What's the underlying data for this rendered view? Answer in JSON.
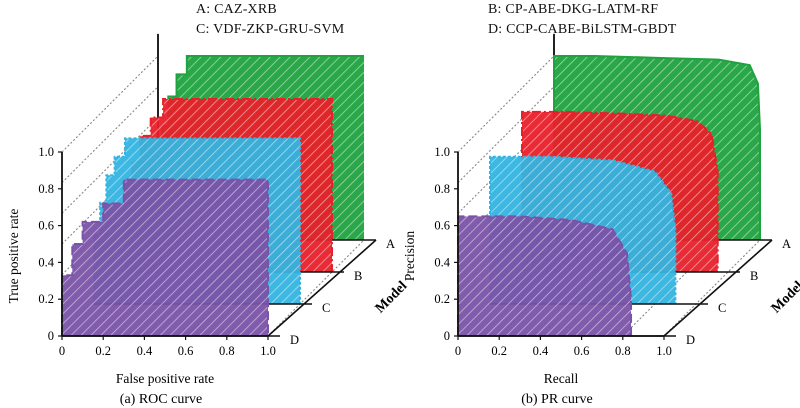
{
  "legend": [
    {
      "key": "A",
      "text": "A: CAZ-XRB",
      "color": "#1fa23f"
    },
    {
      "key": "B",
      "text": "B: CP-ABE-DKG-LATM-RF",
      "color": "#e8202a"
    },
    {
      "key": "C",
      "text": "C: VDF-ZKP-GRU-SVM",
      "color": "#33b4e0"
    },
    {
      "key": "D",
      "text": "D: CCP-CABE-BiLSTM-GBDT",
      "color": "#7a52a8"
    }
  ],
  "chart_data": [
    {
      "type": "area",
      "caption": "(a) ROC curve",
      "xlabel": "False positive rate",
      "ylabel": "True positive rate",
      "zlabel": "Model",
      "xlim": [
        0,
        1
      ],
      "ylim": [
        0,
        1
      ],
      "x_ticks": [
        "0",
        "0.2",
        "0.4",
        "0.6",
        "0.8",
        "1.0"
      ],
      "y_ticks": [
        "0",
        "0.2",
        "0.4",
        "0.6",
        "0.8",
        "1.0"
      ],
      "z_ticks": [
        "A",
        "B",
        "C",
        "D"
      ],
      "series": [
        {
          "name": "A",
          "x": [
            0,
            0,
            0.02,
            0.02,
            0.05,
            0.05,
            0.09,
            0.09,
            0.14,
            0.14,
            0.2,
            1.0
          ],
          "y": [
            0,
            0.45,
            0.45,
            0.62,
            0.62,
            0.78,
            0.78,
            0.9,
            0.9,
            1.0,
            1.0,
            1.0
          ]
        },
        {
          "name": "B",
          "x": [
            0,
            0,
            0.03,
            0.03,
            0.07,
            0.07,
            0.12,
            0.12,
            0.18,
            0.18,
            1.0,
            1.0
          ],
          "y": [
            0,
            0.42,
            0.42,
            0.6,
            0.6,
            0.74,
            0.74,
            0.84,
            0.84,
            0.94,
            0.94,
            0
          ]
        },
        {
          "name": "C",
          "x": [
            0,
            0,
            0.03,
            0.03,
            0.06,
            0.06,
            0.1,
            0.1,
            0.15,
            0.15,
            1.0,
            1.0
          ],
          "y": [
            0,
            0.38,
            0.38,
            0.55,
            0.55,
            0.7,
            0.7,
            0.8,
            0.8,
            0.9,
            0.9,
            0
          ]
        },
        {
          "name": "D",
          "x": [
            0,
            0,
            0.05,
            0.05,
            0.1,
            0.1,
            0.2,
            0.2,
            0.3,
            0.3,
            1.0,
            1.0
          ],
          "y": [
            0,
            0.33,
            0.33,
            0.5,
            0.5,
            0.62,
            0.62,
            0.72,
            0.72,
            0.85,
            0.85,
            0
          ]
        }
      ]
    },
    {
      "type": "area",
      "caption": "(b) PR curve",
      "xlabel": "Recall",
      "ylabel": "Precision",
      "zlabel": "Model",
      "xlim": [
        0,
        1
      ],
      "ylim": [
        0,
        1
      ],
      "x_ticks": [
        "0",
        "0.2",
        "0.4",
        "0.6",
        "0.8",
        "1.0"
      ],
      "y_ticks": [
        "0",
        "0.2",
        "0.4",
        "0.6",
        "0.8",
        "1.0"
      ],
      "z_ticks": [
        "A",
        "B",
        "C",
        "D"
      ],
      "series": [
        {
          "name": "A",
          "x": [
            0,
            0,
            0.2,
            0.5,
            0.8,
            0.95,
            0.99,
            1.0,
            1.0
          ],
          "y": [
            0,
            1.0,
            1.0,
            0.99,
            0.98,
            0.95,
            0.85,
            0.6,
            0
          ]
        },
        {
          "name": "B",
          "x": [
            0,
            0,
            0.2,
            0.5,
            0.7,
            0.85,
            0.92,
            0.95,
            0.95
          ],
          "y": [
            0,
            0.87,
            0.87,
            0.86,
            0.85,
            0.82,
            0.75,
            0.55,
            0
          ]
        },
        {
          "name": "C",
          "x": [
            0,
            0,
            0.3,
            0.6,
            0.8,
            0.88,
            0.9,
            0.9
          ],
          "y": [
            0,
            0.8,
            0.8,
            0.78,
            0.72,
            0.6,
            0.4,
            0
          ]
        },
        {
          "name": "D",
          "x": [
            0,
            0,
            0.3,
            0.55,
            0.75,
            0.82,
            0.84,
            0.84
          ],
          "y": [
            0,
            0.65,
            0.65,
            0.63,
            0.58,
            0.45,
            0.2,
            0
          ]
        }
      ]
    }
  ]
}
